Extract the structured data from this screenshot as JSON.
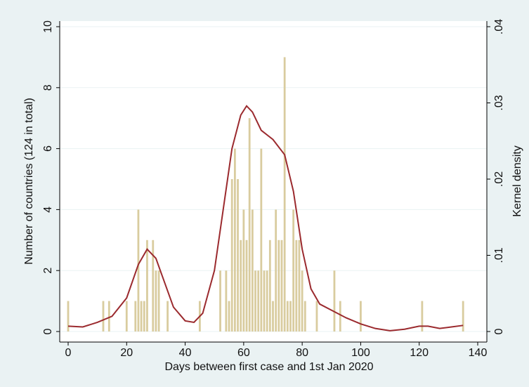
{
  "chart_data": {
    "type": "bar",
    "x_label": "Days between first case and 1st Jan 2020",
    "y_label": "Number of countries (124 in total)",
    "y2_label": "Kernel density",
    "xlim": [
      0,
      140
    ],
    "xticks": [
      0,
      20,
      40,
      60,
      80,
      100,
      120,
      140
    ],
    "ylim": [
      0,
      10
    ],
    "yticks": [
      0,
      2,
      4,
      6,
      8,
      10
    ],
    "y2lim": [
      0,
      0.04
    ],
    "y2ticks": [
      0,
      {
        "value": 0.01,
        "label": ".01"
      },
      {
        "value": 0.02,
        "label": ".02"
      },
      {
        "value": 0.03,
        "label": ".03"
      },
      {
        "value": 0.04,
        "label": ".04"
      }
    ],
    "grid": true,
    "series": [
      {
        "type": "bar",
        "color": "#d9cc9f",
        "x": [
          0,
          12,
          14,
          20,
          23,
          24,
          25,
          26,
          27,
          29,
          30,
          31,
          34,
          45,
          52,
          54,
          55,
          56,
          57,
          58,
          59,
          60,
          61,
          62,
          63,
          64,
          65,
          66,
          67,
          68,
          69,
          70,
          71,
          72,
          73,
          74,
          75,
          76,
          77,
          78,
          79,
          80,
          81,
          85,
          91,
          93,
          100,
          121,
          135
        ],
        "values": [
          1,
          1,
          1,
          1,
          1,
          4,
          1,
          1,
          3,
          3,
          2,
          2,
          1,
          1,
          2,
          2,
          1,
          5,
          6,
          5,
          3,
          4,
          3,
          7,
          4,
          2,
          2,
          6,
          2,
          2,
          3,
          1,
          4,
          3,
          3,
          9,
          1,
          1,
          4,
          3,
          3,
          2,
          1,
          1,
          2,
          1,
          1,
          1,
          1
        ]
      },
      {
        "type": "line",
        "color": "#9b2a2e",
        "axis": "y2",
        "x": [
          0,
          5,
          10,
          15,
          20,
          24,
          27,
          30,
          33,
          36,
          40,
          43,
          46,
          50,
          53,
          56,
          59,
          61,
          63,
          66,
          70,
          74,
          77,
          80,
          83,
          86,
          90,
          95,
          100,
          105,
          110,
          115,
          120,
          123,
          127,
          131,
          135
        ],
        "values": [
          0.0007,
          0.0006,
          0.0012,
          0.002,
          0.0044,
          0.0088,
          0.0108,
          0.0096,
          0.0064,
          0.0032,
          0.0014,
          0.0012,
          0.0024,
          0.008,
          0.016,
          0.024,
          0.0284,
          0.0296,
          0.0288,
          0.0264,
          0.0252,
          0.0232,
          0.0184,
          0.0108,
          0.0056,
          0.0036,
          0.0028,
          0.0018,
          0.001,
          0.0004,
          0.0001,
          0.0003,
          0.0007,
          0.0007,
          0.0004,
          0.0006,
          0.0008
        ]
      }
    ]
  }
}
